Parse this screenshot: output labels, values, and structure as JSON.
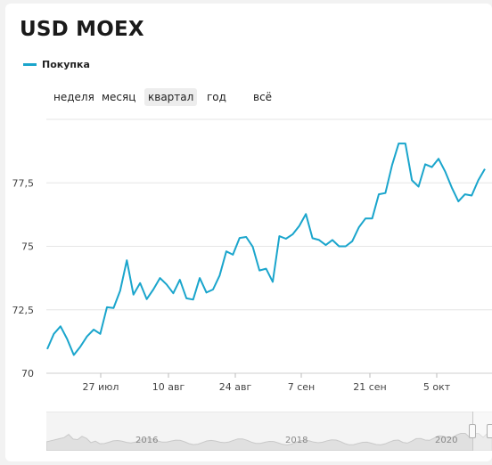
{
  "title": "USD MOEX",
  "legend": {
    "label": "Покупка",
    "color": "#1aa5cc"
  },
  "periods": [
    {
      "label": "неделя",
      "active": false
    },
    {
      "label": "месяц",
      "active": false
    },
    {
      "label": "квартал",
      "active": true
    },
    {
      "label": "год",
      "active": false
    },
    {
      "label": "всё",
      "active": false
    }
  ],
  "navigator": {
    "labels": [
      "2016",
      "2018",
      "2020"
    ]
  },
  "chart_data": {
    "type": "line",
    "ylim": [
      70,
      80
    ],
    "y_ticks": [
      70,
      72.5,
      75,
      77.5
    ],
    "y_tick_labels": [
      "70",
      "72,5",
      "75",
      "77,5"
    ],
    "x_ticks": [
      "27 июл",
      "10 авг",
      "24 авг",
      "7 сен",
      "21 сен",
      "5 окт"
    ],
    "grid": true,
    "series": [
      {
        "name": "Покупка",
        "color": "#1aa5cc",
        "values": [
          70.95,
          71.55,
          71.85,
          71.35,
          70.72,
          71.05,
          71.45,
          71.72,
          71.55,
          72.6,
          72.57,
          73.25,
          74.45,
          73.1,
          73.55,
          72.92,
          73.3,
          73.75,
          73.5,
          73.15,
          73.68,
          72.95,
          72.9,
          73.75,
          73.18,
          73.3,
          73.85,
          74.8,
          74.67,
          75.33,
          75.37,
          74.98,
          74.05,
          74.12,
          73.6,
          75.4,
          75.3,
          75.47,
          75.8,
          76.27,
          75.32,
          75.25,
          75.05,
          75.25,
          75.0,
          75.0,
          75.2,
          75.75,
          76.1,
          76.1,
          77.05,
          77.1,
          78.2,
          79.05,
          79.05,
          77.6,
          77.35,
          78.23,
          78.12,
          78.45,
          77.95,
          77.32,
          76.77,
          77.05,
          77.0,
          77.6,
          78.05
        ]
      }
    ]
  }
}
